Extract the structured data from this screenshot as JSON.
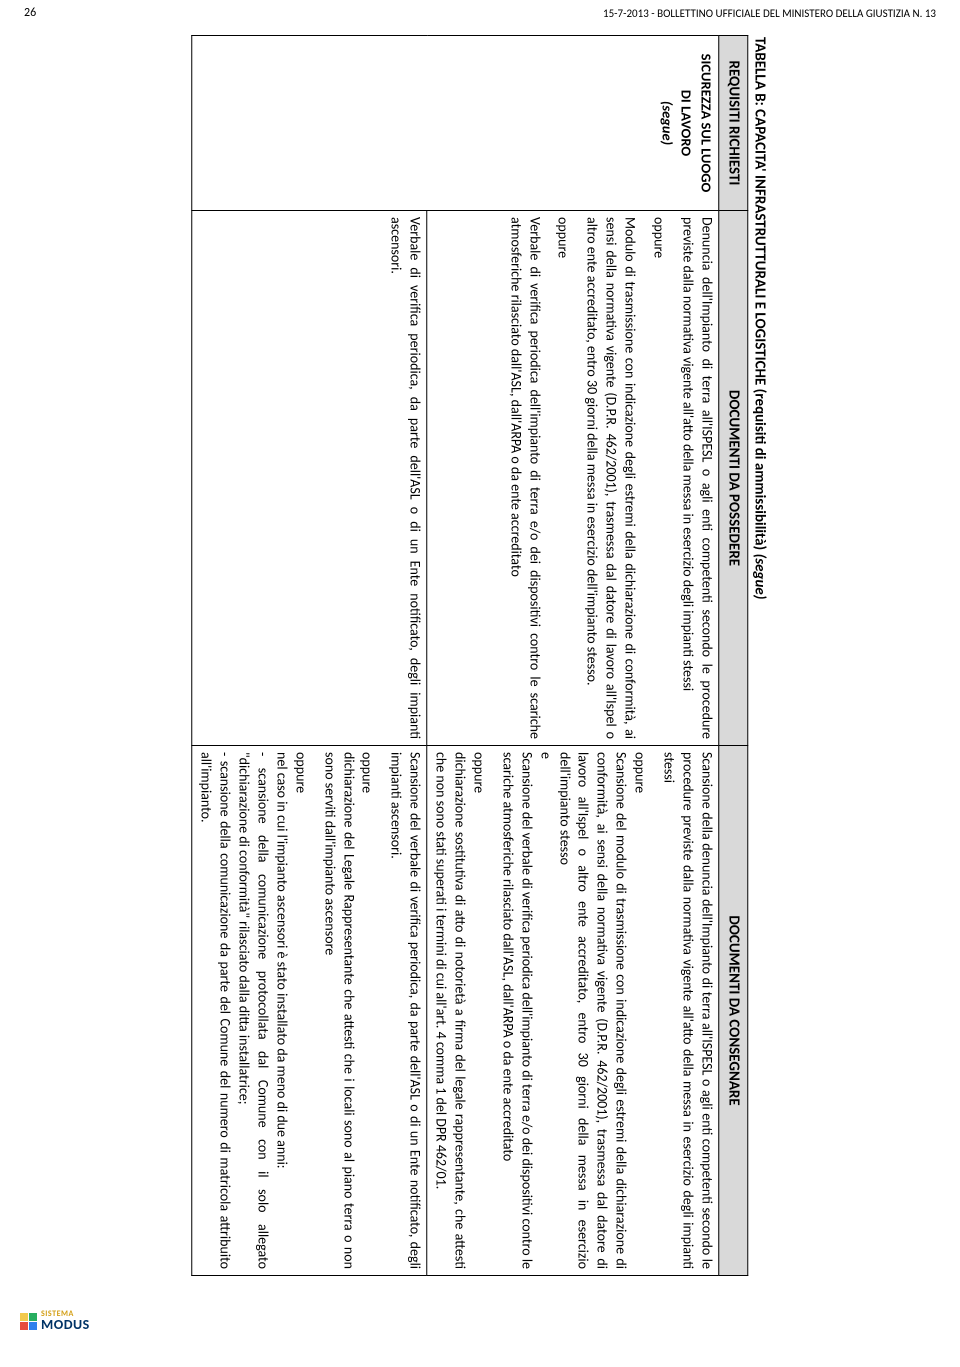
{
  "header": {
    "page_number": "26",
    "header_text": "15-7-2013 - BOLLETTINO UFFICIALE DEL MINISTERO DELLA GIUSTIZIA N. 13"
  },
  "logo": {
    "sistema": "SISTEMA",
    "modus": "MODUS",
    "colors": [
      "#f2c94c",
      "#27ae60",
      "#e74c3c",
      "#2f80ed"
    ]
  },
  "table": {
    "title_prefix": "TABELLA B: CAPACITA' INFRASTRUTTURALI E LOGISTICHE (requisiti di ammissibilità) ",
    "title_suffix": "(segue)",
    "headers": {
      "col1": "REQUISITI RICHIESTI",
      "col2": "DOCUMENTI DA POSSEDERE",
      "col3": "DOCUMENTI DA CONSEGNARE"
    },
    "row1": {
      "req_line1": "SICUREZZA SUL LUOGO",
      "req_line2": "DI LAVORO",
      "req_line3": "(segue)",
      "possedere": {
        "p1": "Denuncia dell'Impianto di terra all'ISPESL o agli enti competenti secondo le procedure previste dalla normativa vigente all'atto della messa in esercizio degli impianti stessi",
        "opp1": "oppure",
        "p2": "Modulo di trasmissione con indicazione degli estremi della dichiarazione di conformità, ai sensi della normativa vigente (D.P.R. 462/2001), trasmessa dal datore di lavoro all'Ispel o altro ente accreditato, entro 30 giorni della messa in esercizio dell'impianto stesso.",
        "opp2": "oppure",
        "p3": "Verbale di verifica periodica dell'impianto di terra e/o dei dispositivi contro le scariche atmosferiche rilasciato dall'ASL, dall'ARPA o da ente accreditato"
      },
      "consegnare": {
        "p1": "Scansione della denuncia dell'Impianto di terra all'ISPESL o agli enti competenti secondo le procedure previste dalla normativa vigente all'atto della messa in esercizio degli impianti stessi",
        "opp1": "oppure",
        "p2": "Scansione del modulo di trasmissione con indicazione degli estremi della dichiarazione di conformità, ai sensi della normativa vigente (D.P.R. 462/2001), trasmessa dal datore di lavoro all'Ispel o altro ente accreditato, entro 30 giorni della messa in esercizio dell'impianto stesso",
        "e": "e",
        "p3": "Scansione del verbale di verifica periodica dell'impianto di terra e/o dei dispositivi contro le scariche atmosferiche rilasciato dall'ASL, dall'ARPA o da ente accreditato",
        "opp2": "oppure",
        "p4": "dichiarazione sostitutiva di atto di notorietà a firma del legale rappresentante, che attesti che non sono stati superati i termini di cui all'art. 4 comma 1 del DPR 462/01."
      }
    },
    "row2": {
      "possedere": {
        "p1": "Verbale di verifica periodica, da parte dell'ASL o di un Ente notificato, degli impianti ascensori."
      },
      "consegnare": {
        "p1": "Scansione del verbale di verifica periodica, da parte dell'ASL o di un Ente notificato, degli impianti ascensori.",
        "opp1": "oppure",
        "p2": "dichiarazione del Legale Rappresentante che attesti che i locali sono al piano terra o non sono serviti dall'impianto ascensore",
        "opp2": "oppure",
        "p3": "nel caso in cui l'impianto ascensori è stato installato da meno di due anni:",
        "p4": "- scansione della comunicazione protocollata dal Comune con il solo allegato \"dichiarazione di conformità\" rilasciato dalla ditta installatrice;",
        "p5": "- scansione della comunicazione da parte del Comune del numero di matricola attribuito all'impianto."
      }
    }
  }
}
